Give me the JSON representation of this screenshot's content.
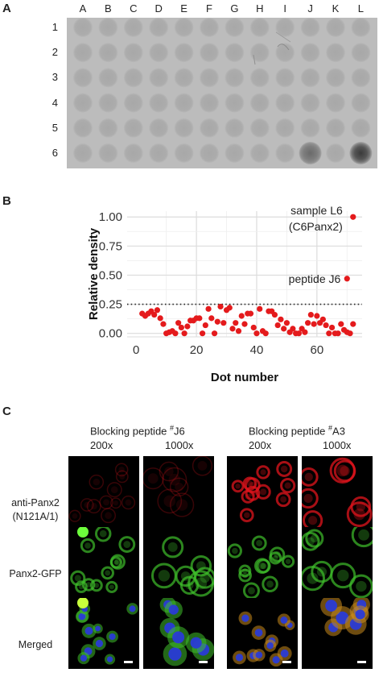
{
  "panels": {
    "a": "A",
    "b": "B",
    "c": "C"
  },
  "blot": {
    "columns": [
      "A",
      "B",
      "C",
      "D",
      "E",
      "F",
      "G",
      "H",
      "I",
      "J",
      "K",
      "L"
    ],
    "rows": [
      "1",
      "2",
      "3",
      "4",
      "5",
      "6"
    ]
  },
  "chart_data": {
    "type": "scatter",
    "xlabel": "Dot number",
    "ylabel": "Relative density",
    "xticks": [
      0,
      20,
      40,
      60
    ],
    "yticks": [
      "0.00",
      "0.25",
      "0.50",
      "0.75",
      "1.00"
    ],
    "xlim": [
      -3,
      75
    ],
    "ylim": [
      -0.03,
      1.05
    ],
    "threshold": 0.25,
    "grid": true,
    "color": "#e41a1c",
    "annotations": [
      {
        "text": "sample L6",
        "x": 72,
        "y": 1.0
      },
      {
        "text": "(C6Panx2)",
        "x": 72,
        "y": 1.0
      },
      {
        "text": "peptide J6",
        "x": 70,
        "y": 0.47
      }
    ],
    "points": [
      [
        2,
        0.17
      ],
      [
        3,
        0.15
      ],
      [
        4,
        0.17
      ],
      [
        5,
        0.19
      ],
      [
        6,
        0.16
      ],
      [
        7,
        0.2
      ],
      [
        8,
        0.13
      ],
      [
        9,
        0.08
      ],
      [
        10,
        0.0
      ],
      [
        11,
        0.01
      ],
      [
        12,
        0.02
      ],
      [
        13,
        0.0
      ],
      [
        14,
        0.09
      ],
      [
        15,
        0.05
      ],
      [
        16,
        0.0
      ],
      [
        17,
        0.06
      ],
      [
        18,
        0.11
      ],
      [
        19,
        0.11
      ],
      [
        20,
        0.13
      ],
      [
        21,
        0.13
      ],
      [
        22,
        0.0
      ],
      [
        23,
        0.07
      ],
      [
        24,
        0.21
      ],
      [
        25,
        0.13
      ],
      [
        26,
        0.0
      ],
      [
        27,
        0.1
      ],
      [
        28,
        0.23
      ],
      [
        29,
        0.09
      ],
      [
        30,
        0.2
      ],
      [
        31,
        0.22
      ],
      [
        32,
        0.04
      ],
      [
        33,
        0.09
      ],
      [
        34,
        0.02
      ],
      [
        35,
        0.15
      ],
      [
        36,
        0.08
      ],
      [
        37,
        0.17
      ],
      [
        38,
        0.17
      ],
      [
        39,
        0.05
      ],
      [
        40,
        0.0
      ],
      [
        41,
        0.21
      ],
      [
        42,
        0.02
      ],
      [
        43,
        0.0
      ],
      [
        44,
        0.19
      ],
      [
        45,
        0.19
      ],
      [
        46,
        0.16
      ],
      [
        47,
        0.07
      ],
      [
        48,
        0.12
      ],
      [
        49,
        0.04
      ],
      [
        50,
        0.09
      ],
      [
        51,
        0.01
      ],
      [
        52,
        0.04
      ],
      [
        53,
        0.0
      ],
      [
        54,
        0.0
      ],
      [
        55,
        0.04
      ],
      [
        56,
        0.01
      ],
      [
        57,
        0.09
      ],
      [
        58,
        0.16
      ],
      [
        59,
        0.08
      ],
      [
        60,
        0.15
      ],
      [
        61,
        0.09
      ],
      [
        62,
        0.12
      ],
      [
        63,
        0.07
      ],
      [
        64,
        0.0
      ],
      [
        65,
        0.05
      ],
      [
        66,
        0.0
      ],
      [
        67,
        0.0
      ],
      [
        68,
        0.08
      ],
      [
        69,
        0.03
      ],
      [
        70,
        0.01
      ],
      [
        71,
        0.0
      ],
      [
        72,
        0.08
      ],
      [
        70,
        0.47
      ],
      [
        72,
        1.0
      ]
    ]
  },
  "panel_c": {
    "conditions": [
      {
        "title_pre": "Blocking peptide ",
        "sup": "#",
        "title_post": "J6"
      },
      {
        "title_pre": "Blocking peptide ",
        "sup": "#",
        "title_post": "A3"
      }
    ],
    "magnifications": [
      "200x",
      "1000x",
      "200x",
      "1000x"
    ],
    "row_labels": [
      "anti-Panx2",
      "(N121A/1)",
      "Panx2-GFP",
      "Merged"
    ]
  },
  "colors": {
    "red_channel": "#e0141c",
    "green_channel": "#3fbf2b",
    "blue_channel": "#2a3bd6",
    "blot_background": "#bdbdbd"
  }
}
